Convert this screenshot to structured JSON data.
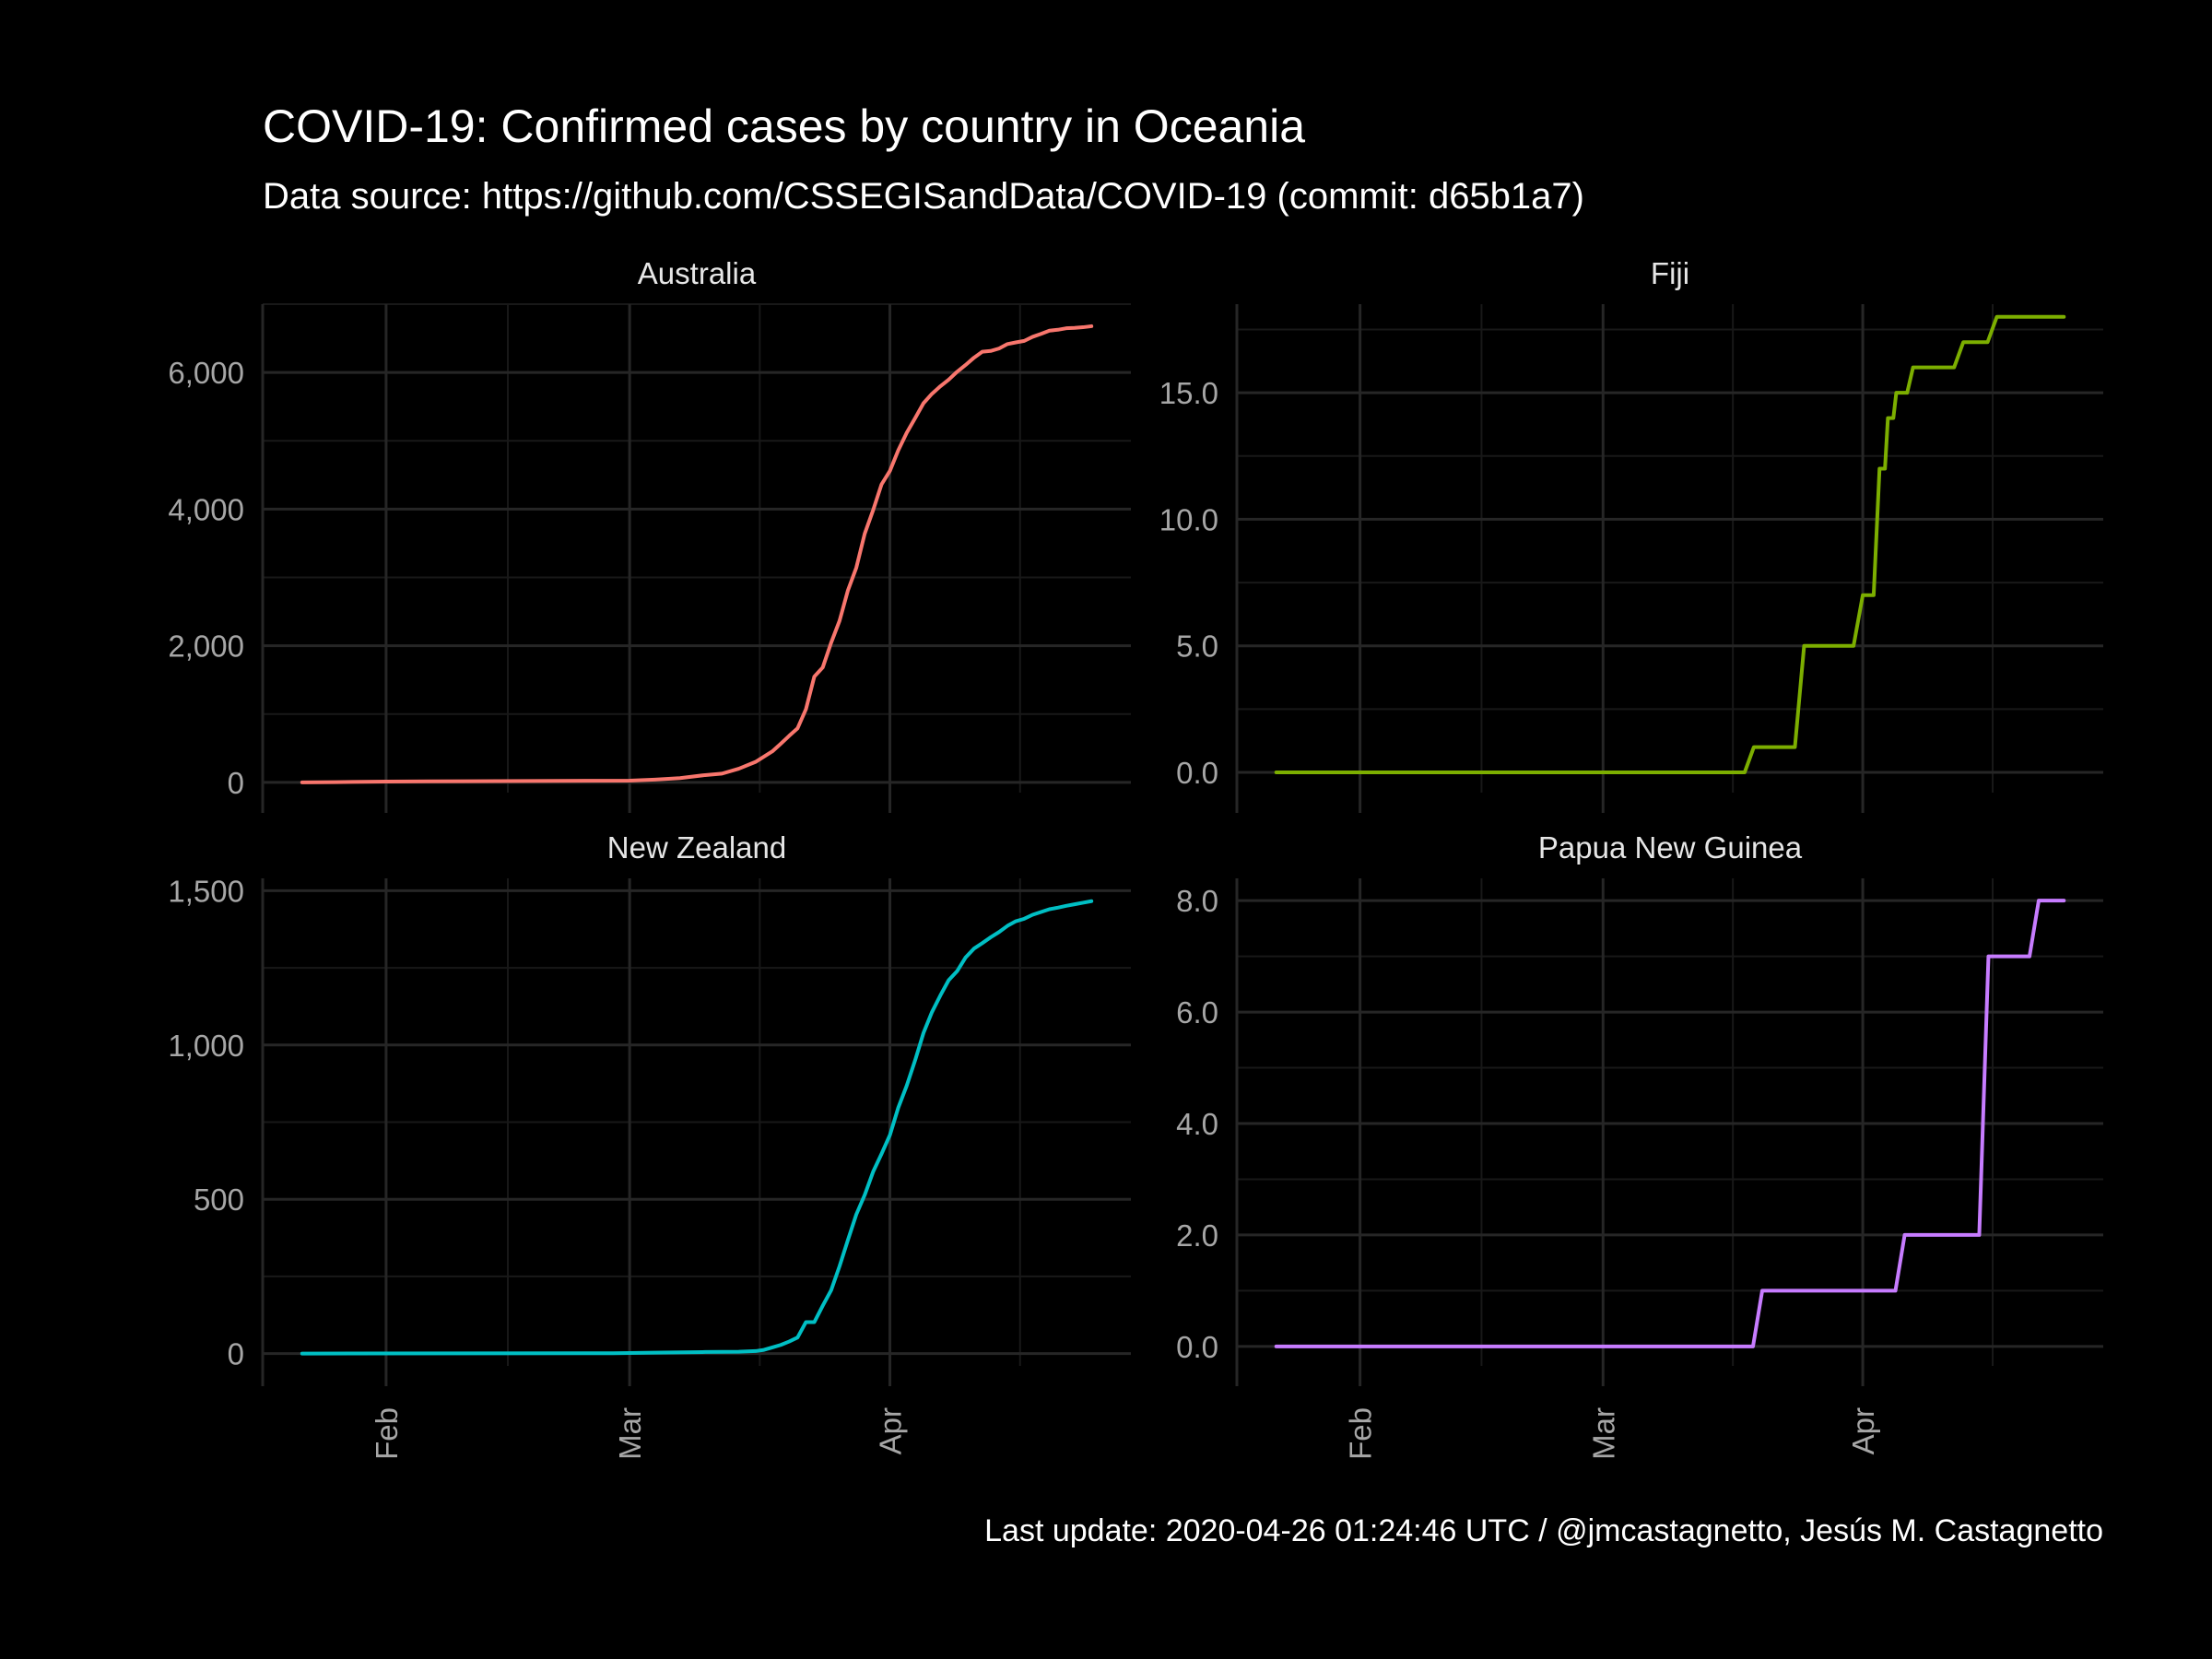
{
  "chart_data": {
    "type": "line",
    "title": "COVID-19: Confirmed cases by country in Oceania",
    "subtitle": "Data source: https://github.com/CSSEGISandData/COVID-19 (commit: d65b1a7)",
    "caption": "Last update:  2020-04-26 01:24:46 UTC / @jmcastagnetto, Jesús M. Castagnetto",
    "xlabel": "",
    "ylabel": "",
    "x_type": "date",
    "xlim": [
      "2020-01-22",
      "2020-04-25"
    ],
    "x_ticks": [
      {
        "date": "2020-02-01",
        "label": "Feb"
      },
      {
        "date": "2020-03-01",
        "label": "Mar"
      },
      {
        "date": "2020-04-01",
        "label": "Apr"
      }
    ],
    "grid": true,
    "legend": "none",
    "panels": [
      {
        "name": "Australia",
        "color": "#F8766D",
        "ylim": [
          -150,
          7000
        ],
        "y_ticks": [
          0,
          2000,
          4000,
          6000
        ],
        "y_labels": [
          "0",
          "2,000",
          "4,000",
          "6,000"
        ],
        "step": false,
        "points": [
          [
            "2020-01-22",
            0
          ],
          [
            "2020-01-26",
            4
          ],
          [
            "2020-02-01",
            12
          ],
          [
            "2020-02-06",
            15
          ],
          [
            "2020-03-01",
            26
          ],
          [
            "2020-03-04",
            41
          ],
          [
            "2020-03-07",
            63
          ],
          [
            "2020-03-10",
            107
          ],
          [
            "2020-03-12",
            128
          ],
          [
            "2020-03-14",
            200
          ],
          [
            "2020-03-16",
            300
          ],
          [
            "2020-03-18",
            454
          ],
          [
            "2020-03-19",
            565
          ],
          [
            "2020-03-20",
            681
          ],
          [
            "2020-03-21",
            791
          ],
          [
            "2020-03-22",
            1071
          ],
          [
            "2020-03-23",
            1549
          ],
          [
            "2020-03-24",
            1682
          ],
          [
            "2020-03-25",
            2044
          ],
          [
            "2020-03-26",
            2364
          ],
          [
            "2020-03-27",
            2810
          ],
          [
            "2020-03-28",
            3143
          ],
          [
            "2020-03-29",
            3640
          ],
          [
            "2020-03-30",
            3984
          ],
          [
            "2020-03-31",
            4361
          ],
          [
            "2020-04-01",
            4559
          ],
          [
            "2020-04-02",
            4862
          ],
          [
            "2020-04-03",
            5116
          ],
          [
            "2020-04-04",
            5330
          ],
          [
            "2020-04-05",
            5550
          ],
          [
            "2020-04-06",
            5687
          ],
          [
            "2020-04-07",
            5797
          ],
          [
            "2020-04-08",
            5895
          ],
          [
            "2020-04-09",
            6010
          ],
          [
            "2020-04-10",
            6108
          ],
          [
            "2020-04-11",
            6215
          ],
          [
            "2020-04-12",
            6303
          ],
          [
            "2020-04-13",
            6315
          ],
          [
            "2020-04-14",
            6351
          ],
          [
            "2020-04-15",
            6416
          ],
          [
            "2020-04-16",
            6440
          ],
          [
            "2020-04-17",
            6462
          ],
          [
            "2020-04-18",
            6522
          ],
          [
            "2020-04-19",
            6565
          ],
          [
            "2020-04-20",
            6612
          ],
          [
            "2020-04-21",
            6625
          ],
          [
            "2020-04-22",
            6647
          ],
          [
            "2020-04-23",
            6652
          ],
          [
            "2020-04-24",
            6662
          ],
          [
            "2020-04-25",
            6677
          ]
        ]
      },
      {
        "name": "Fiji",
        "color": "#7CAE00",
        "ylim": [
          -0.8,
          18.5
        ],
        "y_ticks": [
          0,
          5,
          10,
          15
        ],
        "y_labels": [
          "0.0",
          "5.0",
          "10.0",
          "15.0"
        ],
        "step": true,
        "points": [
          [
            "2020-01-22",
            0
          ],
          [
            "2020-03-19",
            1
          ],
          [
            "2020-03-21",
            1
          ],
          [
            "2020-03-25",
            5
          ],
          [
            "2020-04-01",
            7
          ],
          [
            "2020-04-03",
            12
          ],
          [
            "2020-04-04",
            14
          ],
          [
            "2020-04-05",
            15
          ],
          [
            "2020-04-07",
            16
          ],
          [
            "2020-04-13",
            17
          ],
          [
            "2020-04-17",
            18
          ],
          [
            "2020-04-25",
            18
          ]
        ]
      },
      {
        "name": "New Zealand",
        "color": "#00BFC4",
        "ylim": [
          -40,
          1540
        ],
        "y_ticks": [
          0,
          500,
          1000,
          1500
        ],
        "y_labels": [
          "0",
          "500",
          "1,000",
          "1,500"
        ],
        "step": false,
        "points": [
          [
            "2020-01-22",
            0
          ],
          [
            "2020-02-28",
            1
          ],
          [
            "2020-03-04",
            3
          ],
          [
            "2020-03-10",
            5
          ],
          [
            "2020-03-14",
            6
          ],
          [
            "2020-03-16",
            8
          ],
          [
            "2020-03-17",
            12
          ],
          [
            "2020-03-18",
            20
          ],
          [
            "2020-03-19",
            28
          ],
          [
            "2020-03-20",
            39
          ],
          [
            "2020-03-21",
            52
          ],
          [
            "2020-03-22",
            102
          ],
          [
            "2020-03-23",
            102
          ],
          [
            "2020-03-24",
            155
          ],
          [
            "2020-03-25",
            205
          ],
          [
            "2020-03-26",
            283
          ],
          [
            "2020-03-27",
            368
          ],
          [
            "2020-03-28",
            451
          ],
          [
            "2020-03-29",
            514
          ],
          [
            "2020-03-30",
            589
          ],
          [
            "2020-03-31",
            647
          ],
          [
            "2020-04-01",
            708
          ],
          [
            "2020-04-02",
            797
          ],
          [
            "2020-04-03",
            868
          ],
          [
            "2020-04-04",
            950
          ],
          [
            "2020-04-05",
            1039
          ],
          [
            "2020-04-06",
            1106
          ],
          [
            "2020-04-07",
            1160
          ],
          [
            "2020-04-08",
            1210
          ],
          [
            "2020-04-09",
            1239
          ],
          [
            "2020-04-10",
            1283
          ],
          [
            "2020-04-11",
            1312
          ],
          [
            "2020-04-12",
            1330
          ],
          [
            "2020-04-13",
            1349
          ],
          [
            "2020-04-14",
            1366
          ],
          [
            "2020-04-15",
            1386
          ],
          [
            "2020-04-16",
            1401
          ],
          [
            "2020-04-17",
            1409
          ],
          [
            "2020-04-18",
            1422
          ],
          [
            "2020-04-19",
            1431
          ],
          [
            "2020-04-20",
            1440
          ],
          [
            "2020-04-21",
            1445
          ],
          [
            "2020-04-22",
            1451
          ],
          [
            "2020-04-23",
            1456
          ],
          [
            "2020-04-24",
            1461
          ],
          [
            "2020-04-25",
            1466
          ]
        ]
      },
      {
        "name": "Papua New Guinea",
        "color": "#C77CFF",
        "ylim": [
          -0.35,
          8.4
        ],
        "y_ticks": [
          0,
          2,
          4,
          6,
          8
        ],
        "y_labels": [
          "0.0",
          "2.0",
          "4.0",
          "6.0",
          "8.0"
        ],
        "step": true,
        "points": [
          [
            "2020-01-22",
            0
          ],
          [
            "2020-03-20",
            1
          ],
          [
            "2020-04-06",
            2
          ],
          [
            "2020-04-16",
            7
          ],
          [
            "2020-04-22",
            8
          ],
          [
            "2020-04-25",
            8
          ]
        ]
      }
    ]
  }
}
